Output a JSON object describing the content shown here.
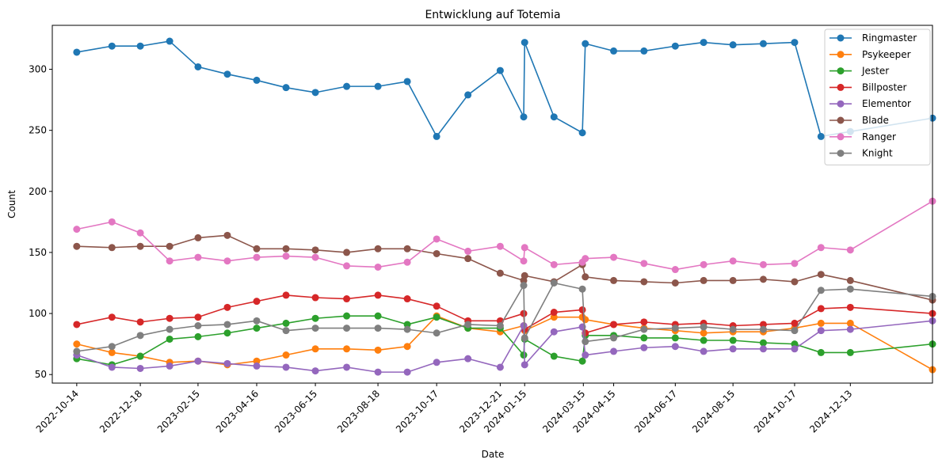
{
  "chart_data": {
    "type": "line",
    "title": "Entwicklung auf Totemia",
    "xlabel": "Date",
    "ylabel": "Count",
    "x_range": [
      "2022-09-19",
      "2025-03-07"
    ],
    "ylim": [
      43,
      336
    ],
    "y_ticks": [
      50,
      100,
      150,
      200,
      250,
      300
    ],
    "x_ticks": [
      "2022-10-14",
      "2022-12-18",
      "2023-02-15",
      "2023-04-16",
      "2023-06-15",
      "2023-08-18",
      "2023-10-17",
      "2023-12-21",
      "2024-01-15",
      "2024-03-15",
      "2024-04-15",
      "2024-06-17",
      "2024-08-15",
      "2024-10-17",
      "2024-12-13"
    ],
    "grid": false,
    "legend_position": "top-right",
    "x": [
      "2022-10-14",
      "2022-11-19",
      "2022-12-18",
      "2023-01-17",
      "2023-02-15",
      "2023-03-17",
      "2023-04-16",
      "2023-05-16",
      "2023-06-15",
      "2023-07-17",
      "2023-08-18",
      "2023-09-17",
      "2023-10-17",
      "2023-11-18",
      "2023-12-21",
      "2024-01-14",
      "2024-01-15",
      "2024-02-14",
      "2024-03-14",
      "2024-03-17",
      "2024-04-15",
      "2024-05-16",
      "2024-06-17",
      "2024-07-16",
      "2024-08-15",
      "2024-09-15",
      "2024-10-17",
      "2024-11-13",
      "2024-12-13",
      "2025-03-07"
    ],
    "series": [
      {
        "name": "Ringmaster",
        "color": "#1f77b4",
        "values": [
          314,
          319,
          319,
          323,
          302,
          296,
          291,
          285,
          281,
          286,
          286,
          290,
          245,
          279,
          299,
          261,
          322,
          261,
          248,
          321,
          315,
          315,
          319,
          322,
          320,
          321,
          322,
          245,
          249,
          260
        ]
      },
      {
        "name": "Psykeeper",
        "color": "#ff7f0e",
        "values": [
          75,
          68,
          65,
          60,
          61,
          58,
          61,
          66,
          71,
          71,
          70,
          73,
          98,
          88,
          85,
          90,
          86,
          97,
          97,
          95,
          91,
          88,
          86,
          84,
          85,
          85,
          88,
          92,
          92,
          54
        ]
      },
      {
        "name": "Jester",
        "color": "#2ca02c",
        "values": [
          63,
          58,
          65,
          79,
          81,
          84,
          88,
          92,
          96,
          98,
          98,
          91,
          97,
          88,
          88,
          66,
          79,
          65,
          61,
          82,
          82,
          80,
          80,
          78,
          78,
          76,
          75,
          68,
          68,
          75
        ]
      },
      {
        "name": "Billposter",
        "color": "#d62728",
        "values": [
          91,
          97,
          93,
          96,
          97,
          105,
          110,
          115,
          113,
          112,
          115,
          112,
          106,
          94,
          94,
          100,
          87,
          101,
          103,
          84,
          91,
          93,
          91,
          92,
          90,
          91,
          92,
          104,
          105,
          100
        ]
      },
      {
        "name": "Elementor",
        "color": "#9467bd",
        "values": [
          66,
          56,
          55,
          57,
          61,
          59,
          57,
          56,
          53,
          56,
          52,
          52,
          60,
          63,
          56,
          90,
          58,
          85,
          89,
          66,
          69,
          72,
          73,
          69,
          71,
          71,
          71,
          86,
          87,
          94
        ]
      },
      {
        "name": "Blade",
        "color": "#8c564b",
        "values": [
          155,
          154,
          155,
          155,
          162,
          164,
          153,
          153,
          152,
          150,
          153,
          153,
          149,
          145,
          133,
          127,
          131,
          126,
          140,
          130,
          127,
          126,
          125,
          127,
          127,
          128,
          126,
          132,
          127,
          111
        ]
      },
      {
        "name": "Ranger",
        "color": "#e377c2",
        "values": [
          169,
          175,
          166,
          143,
          146,
          143,
          146,
          147,
          146,
          139,
          138,
          142,
          161,
          151,
          155,
          143,
          154,
          140,
          142,
          145,
          146,
          141,
          136,
          140,
          143,
          140,
          141,
          154,
          152,
          192
        ]
      },
      {
        "name": "Knight",
        "color": "#7f7f7f",
        "values": [
          69,
          73,
          82,
          87,
          90,
          91,
          94,
          86,
          88,
          88,
          88,
          87,
          84,
          91,
          90,
          123,
          80,
          125,
          120,
          77,
          80,
          87,
          88,
          89,
          87,
          87,
          86,
          119,
          120,
          114
        ]
      }
    ]
  }
}
